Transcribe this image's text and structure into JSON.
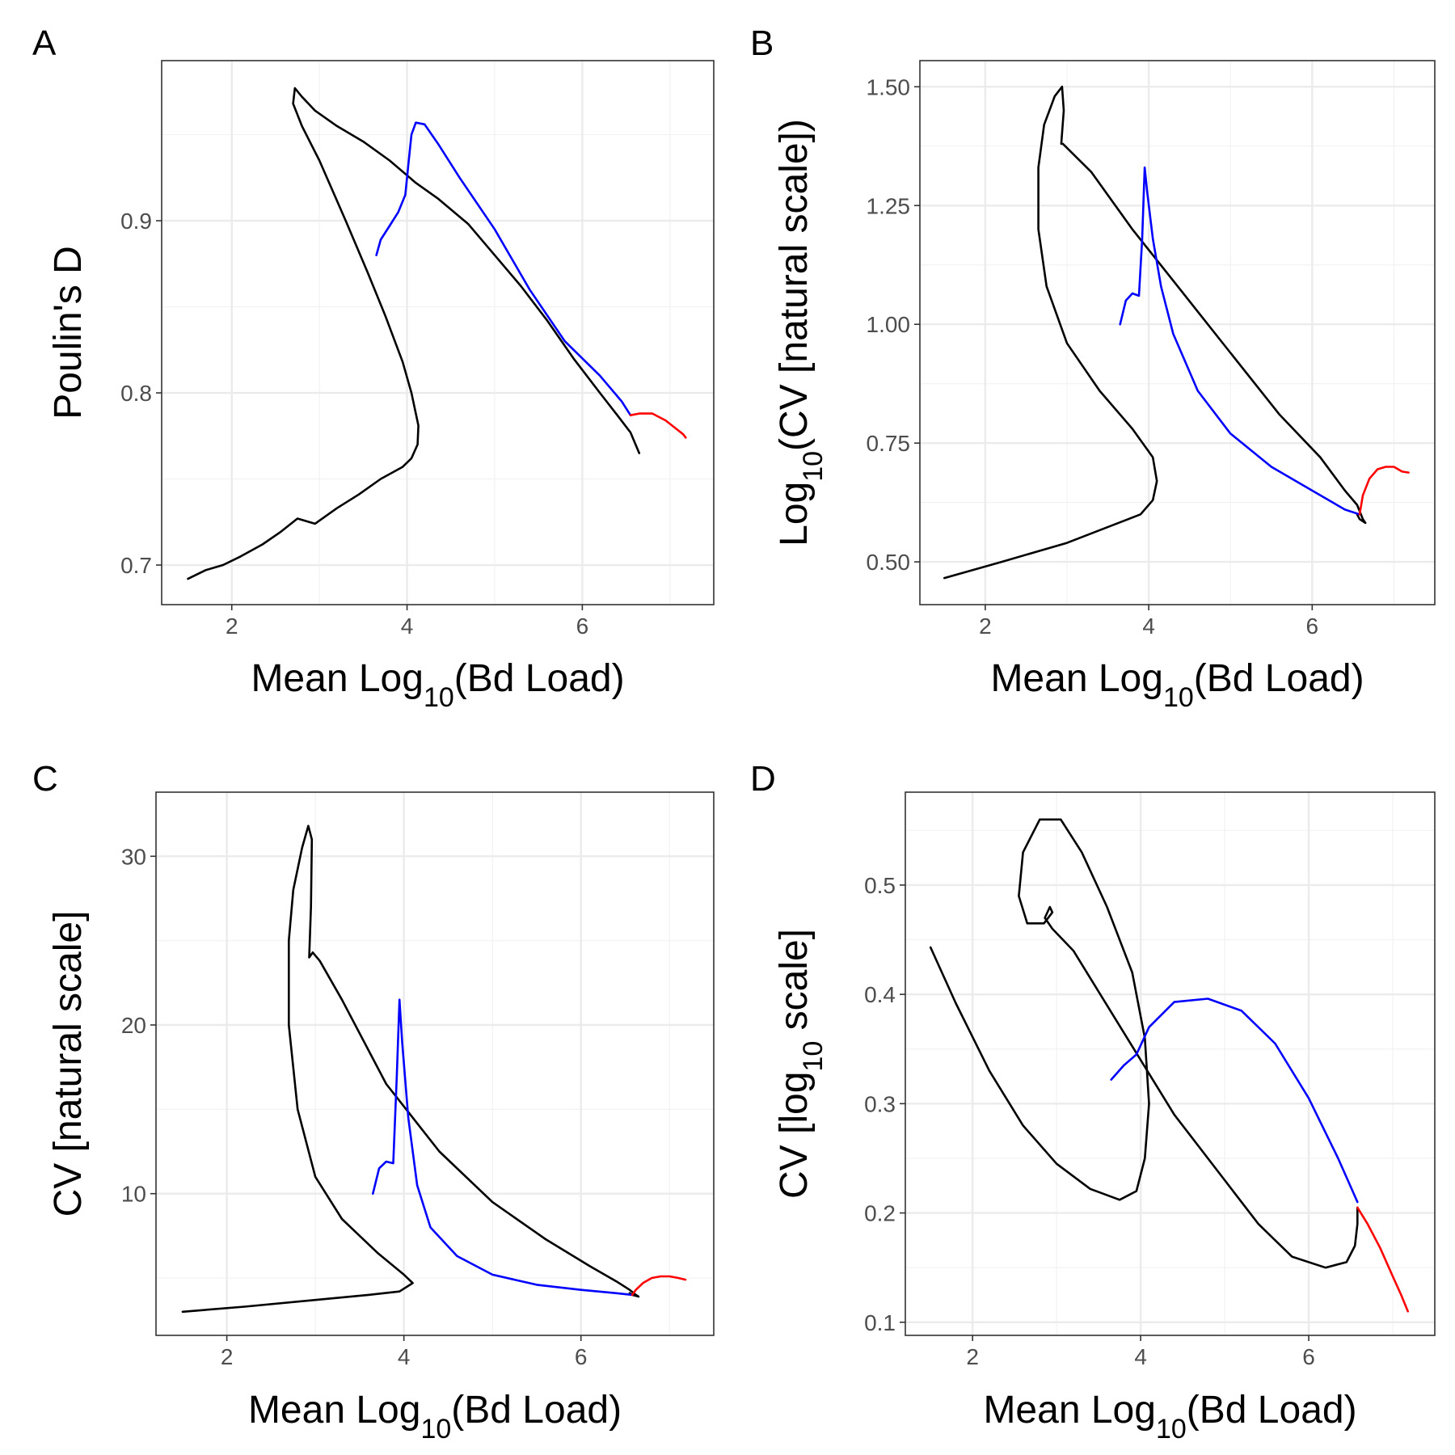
{
  "chart_data": [
    {
      "panel": "A",
      "type": "line",
      "xlabel": {
        "main": "Mean Log",
        "sub": "10",
        "tail": "(Bd Load)"
      },
      "ylabel": {
        "main": "Poulin's D",
        "sub": "",
        "tail": ""
      },
      "xlim": [
        1.2,
        7.5
      ],
      "ylim": [
        0.677,
        0.993
      ],
      "xticks": [
        2,
        4,
        6
      ],
      "yticks": [
        0.7,
        0.8,
        0.9
      ],
      "ytick_labels": [
        "0.7",
        "0.8",
        "0.9"
      ],
      "grid": true,
      "series": [
        {
          "color": "#000000",
          "x": [
            1.5,
            1.7,
            1.9,
            2.1,
            2.35,
            2.55,
            2.75,
            2.95,
            3.2,
            3.45,
            3.7,
            3.95,
            4.05,
            4.12,
            4.13,
            4.05,
            3.95,
            3.75,
            3.55,
            3.3,
            3.0,
            2.8,
            2.7,
            2.72,
            2.8,
            2.95,
            3.2,
            3.5,
            3.8,
            4.1,
            4.35,
            4.7,
            5.0,
            5.3,
            5.6,
            5.9,
            6.2,
            6.4,
            6.55,
            6.65
          ],
          "y": [
            0.692,
            0.697,
            0.7,
            0.705,
            0.712,
            0.719,
            0.727,
            0.724,
            0.733,
            0.741,
            0.75,
            0.757,
            0.762,
            0.77,
            0.781,
            0.8,
            0.818,
            0.845,
            0.87,
            0.9,
            0.935,
            0.955,
            0.968,
            0.977,
            0.972,
            0.964,
            0.955,
            0.946,
            0.935,
            0.922,
            0.913,
            0.898,
            0.88,
            0.862,
            0.842,
            0.82,
            0.8,
            0.787,
            0.777,
            0.765
          ]
        },
        {
          "color": "#0000ff",
          "x": [
            3.65,
            3.7,
            3.8,
            3.9,
            3.98,
            4.02,
            4.05,
            4.1,
            4.2,
            4.35,
            4.6,
            5.0,
            5.4,
            5.8,
            6.2,
            6.45,
            6.55
          ],
          "y": [
            0.88,
            0.889,
            0.897,
            0.905,
            0.915,
            0.935,
            0.95,
            0.957,
            0.956,
            0.945,
            0.925,
            0.895,
            0.86,
            0.83,
            0.81,
            0.795,
            0.787
          ]
        },
        {
          "color": "#ff0000",
          "x": [
            6.55,
            6.65,
            6.8,
            6.95,
            7.05,
            7.15,
            7.18
          ],
          "y": [
            0.787,
            0.788,
            0.788,
            0.784,
            0.78,
            0.776,
            0.774
          ]
        }
      ]
    },
    {
      "panel": "B",
      "type": "line",
      "xlabel": {
        "main": "Mean Log",
        "sub": "10",
        "tail": "(Bd Load)"
      },
      "ylabel": {
        "main": "Log",
        "sub": "10",
        "tail": "(CV [natural scale])"
      },
      "xlim": [
        1.2,
        7.5
      ],
      "ylim": [
        0.41,
        1.555
      ],
      "xticks": [
        2,
        4,
        6
      ],
      "yticks": [
        0.5,
        0.75,
        1.0,
        1.25,
        1.5
      ],
      "ytick_labels": [
        "0.50",
        "0.75",
        "1.00",
        "1.25",
        "1.50"
      ],
      "grid": true,
      "series": [
        {
          "color": "#000000",
          "x": [
            1.5,
            2.2,
            3.0,
            3.6,
            3.9,
            4.05,
            4.1,
            4.05,
            3.8,
            3.4,
            3.0,
            2.75,
            2.65,
            2.65,
            2.72,
            2.85,
            2.94,
            2.96,
            2.93,
            2.95,
            3.3,
            3.8,
            4.4,
            5.0,
            5.6,
            6.1,
            6.4,
            6.55,
            6.62,
            6.65,
            6.58,
            6.55
          ],
          "y": [
            0.466,
            0.5,
            0.54,
            0.58,
            0.6,
            0.63,
            0.67,
            0.72,
            0.78,
            0.86,
            0.96,
            1.08,
            1.2,
            1.33,
            1.42,
            1.48,
            1.5,
            1.45,
            1.38,
            1.38,
            1.32,
            1.2,
            1.07,
            0.94,
            0.81,
            0.72,
            0.65,
            0.62,
            0.59,
            0.582,
            0.59,
            0.6
          ]
        },
        {
          "color": "#0000ff",
          "x": [
            3.65,
            3.72,
            3.8,
            3.88,
            3.92,
            3.95,
            3.98,
            4.05,
            4.15,
            4.3,
            4.6,
            5.0,
            5.5,
            6.0,
            6.4,
            6.58
          ],
          "y": [
            1.0,
            1.05,
            1.065,
            1.06,
            1.18,
            1.33,
            1.28,
            1.18,
            1.08,
            0.98,
            0.86,
            0.77,
            0.7,
            0.65,
            0.61,
            0.6
          ]
        },
        {
          "color": "#ff0000",
          "x": [
            6.58,
            6.62,
            6.7,
            6.8,
            6.9,
            7.0,
            7.1,
            7.18
          ],
          "y": [
            0.6,
            0.64,
            0.675,
            0.695,
            0.7,
            0.7,
            0.69,
            0.688
          ]
        }
      ]
    },
    {
      "panel": "C",
      "type": "line",
      "xlabel": {
        "main": "Mean Log",
        "sub": "10",
        "tail": "(Bd Load)"
      },
      "ylabel": {
        "main": "CV [natural scale]",
        "sub": "",
        "tail": ""
      },
      "xlim": [
        1.2,
        7.5
      ],
      "ylim": [
        1.6,
        33.8
      ],
      "xticks": [
        2,
        4,
        6
      ],
      "yticks": [
        10,
        20,
        30
      ],
      "ytick_labels": [
        "10",
        "20",
        "30"
      ],
      "grid": true,
      "series": [
        {
          "color": "#000000",
          "x": [
            1.5,
            2.2,
            3.0,
            3.6,
            3.95,
            4.1,
            4.0,
            3.7,
            3.3,
            3.0,
            2.8,
            2.7,
            2.7,
            2.75,
            2.85,
            2.92,
            2.96,
            2.95,
            2.93,
            2.97,
            3.05,
            3.3,
            3.8,
            4.4,
            5.0,
            5.6,
            6.1,
            6.4,
            6.55,
            6.62,
            6.65,
            6.58,
            6.55
          ],
          "y": [
            3.0,
            3.3,
            3.7,
            4.0,
            4.2,
            4.7,
            5.2,
            6.5,
            8.5,
            11.0,
            15.0,
            20.0,
            25.0,
            28.0,
            30.5,
            31.8,
            31.0,
            27.0,
            24.0,
            24.3,
            23.8,
            21.5,
            16.5,
            12.5,
            9.5,
            7.3,
            5.7,
            4.8,
            4.3,
            4.0,
            3.9,
            4.0,
            4.1
          ]
        },
        {
          "color": "#0000ff",
          "x": [
            3.65,
            3.72,
            3.8,
            3.88,
            3.92,
            3.95,
            3.98,
            4.05,
            4.15,
            4.3,
            4.6,
            5.0,
            5.5,
            6.0,
            6.4,
            6.58
          ],
          "y": [
            10.0,
            11.5,
            11.9,
            11.8,
            17.0,
            21.5,
            19.0,
            14.5,
            10.5,
            8.0,
            6.3,
            5.2,
            4.6,
            4.3,
            4.1,
            4.0
          ]
        },
        {
          "color": "#ff0000",
          "x": [
            6.58,
            6.62,
            6.7,
            6.8,
            6.9,
            7.0,
            7.1,
            7.18
          ],
          "y": [
            4.0,
            4.3,
            4.7,
            5.0,
            5.1,
            5.1,
            5.0,
            4.9
          ]
        }
      ]
    },
    {
      "panel": "D",
      "type": "line",
      "xlabel": {
        "main": "Mean Log",
        "sub": "10",
        "tail": "(Bd Load)"
      },
      "ylabel": {
        "main": "CV [log",
        "sub": "10",
        "tail": " scale]"
      },
      "xlim": [
        1.2,
        7.5
      ],
      "ylim": [
        0.088,
        0.585
      ],
      "xticks": [
        2,
        4,
        6
      ],
      "yticks": [
        0.1,
        0.2,
        0.3,
        0.4,
        0.5
      ],
      "ytick_labels": [
        "0.1",
        "0.2",
        "0.3",
        "0.4",
        "0.5"
      ],
      "grid": true,
      "series": [
        {
          "color": "#000000",
          "x": [
            1.5,
            1.8,
            2.2,
            2.6,
            3.0,
            3.4,
            3.75,
            3.95,
            4.05,
            4.1,
            4.05,
            3.9,
            3.6,
            3.3,
            3.05,
            2.8,
            2.6,
            2.55,
            2.65,
            2.85,
            2.95,
            2.92,
            2.86,
            2.95,
            3.2,
            3.6,
            4.0,
            4.4,
            4.9,
            5.4,
            5.8,
            6.2,
            6.45,
            6.55,
            6.58,
            6.58
          ],
          "y": [
            0.443,
            0.392,
            0.33,
            0.28,
            0.245,
            0.222,
            0.212,
            0.22,
            0.25,
            0.3,
            0.36,
            0.42,
            0.48,
            0.53,
            0.56,
            0.56,
            0.53,
            0.49,
            0.465,
            0.465,
            0.475,
            0.48,
            0.47,
            0.46,
            0.44,
            0.39,
            0.34,
            0.29,
            0.24,
            0.19,
            0.16,
            0.15,
            0.155,
            0.17,
            0.19,
            0.205
          ]
        },
        {
          "color": "#0000ff",
          "x": [
            3.65,
            3.8,
            3.95,
            4.1,
            4.4,
            4.8,
            5.2,
            5.6,
            6.0,
            6.35,
            6.58
          ],
          "y": [
            0.322,
            0.335,
            0.345,
            0.37,
            0.393,
            0.396,
            0.385,
            0.355,
            0.305,
            0.25,
            0.21
          ]
        },
        {
          "color": "#ff0000",
          "x": [
            6.58,
            6.7,
            6.85,
            7.0,
            7.1,
            7.18
          ],
          "y": [
            0.205,
            0.19,
            0.168,
            0.142,
            0.125,
            0.11
          ]
        }
      ]
    }
  ]
}
